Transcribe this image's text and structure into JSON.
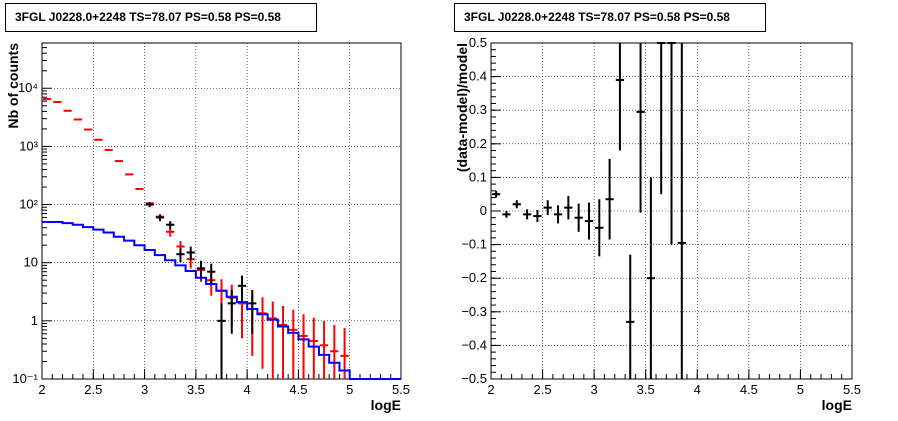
{
  "chart_data": [
    {
      "type": "line",
      "title": "3FGL J0228.0+2248 TS=78.07 PS=0.58 PS=0.58",
      "xlabel": "logE",
      "ylabel": "Nb of counts",
      "xlim": [
        2,
        5.5
      ],
      "ylim": [
        0.1,
        60000
      ],
      "yscale": "log",
      "grid": true,
      "xticks": [
        "2",
        "2.5",
        "3",
        "3.5",
        "4",
        "4.5",
        "5",
        "5.5"
      ],
      "yticks": [
        {
          "value": 0.1,
          "label": "10⁻¹"
        },
        {
          "value": 1,
          "label": "1"
        },
        {
          "value": 10,
          "label": "10"
        },
        {
          "value": 100,
          "label": "10²"
        },
        {
          "value": 1000,
          "label": "10³"
        },
        {
          "value": 10000,
          "label": "10⁴"
        }
      ],
      "series": [
        {
          "color": "#ff0000",
          "style": "error-points",
          "x": [
            2.05,
            2.15,
            2.25,
            2.35,
            2.45,
            2.55,
            2.65,
            2.75,
            2.85,
            2.95,
            3.05,
            3.15,
            3.25,
            3.35,
            3.45,
            3.55,
            3.65,
            3.75,
            3.85,
            3.95,
            4.05,
            4.15,
            4.25,
            4.35,
            4.45,
            4.55,
            4.65,
            4.75,
            4.85,
            4.95
          ],
          "y": [
            6500,
            5800,
            4100,
            2900,
            1950,
            1300,
            870,
            560,
            330,
            185,
            105,
            62,
            34,
            19,
            11.5,
            7.5,
            5,
            3.3,
            2.5,
            2,
            1.6,
            1.35,
            1.1,
            0.85,
            0.7,
            0.55,
            0.45,
            0.38,
            0.3,
            0.25
          ],
          "err": [
            0,
            0,
            0,
            0,
            0,
            0,
            0,
            0,
            0,
            0,
            0,
            0,
            6,
            4.5,
            3.5,
            2.8,
            2.3,
            1.9,
            1.7,
            1.5,
            1.35,
            1.2,
            1.05,
            0.95,
            0.85,
            0.75,
            0.68,
            0.62,
            0.55,
            0.5
          ]
        },
        {
          "color": "#000000",
          "style": "error-points",
          "x": [
            3.05,
            3.15,
            3.25,
            3.35,
            3.45,
            3.55,
            3.65,
            3.75,
            3.85,
            3.95,
            4.05
          ],
          "y": [
            100,
            60,
            45,
            14,
            15,
            8,
            7,
            1,
            2,
            4,
            2
          ],
          "err": [
            10,
            8,
            6.7,
            3.7,
            3.9,
            2.8,
            2.6,
            1,
            1.4,
            2,
            1.4
          ]
        },
        {
          "color": "#0000ff",
          "style": "step",
          "x": [
            2.05,
            2.15,
            2.25,
            2.35,
            2.45,
            2.55,
            2.65,
            2.75,
            2.85,
            2.95,
            3.05,
            3.15,
            3.25,
            3.35,
            3.45,
            3.55,
            3.65,
            3.75,
            3.85,
            3.95,
            4.05,
            4.15,
            4.25,
            4.35,
            4.45,
            4.55,
            4.65,
            4.75,
            4.85,
            4.95,
            5.05,
            5.15,
            5.25,
            5.35,
            5.45
          ],
          "y": [
            50,
            50,
            48,
            45,
            41,
            37,
            33,
            28,
            24,
            20,
            16.5,
            13.5,
            11,
            9,
            7.2,
            5.5,
            4.3,
            3.3,
            2.6,
            2.1,
            1.6,
            1.3,
            1.05,
            0.8,
            0.62,
            0.48,
            0.36,
            0.26,
            0.19,
            0.14,
            0.1,
            0.1,
            0.1,
            0.1,
            0.1
          ]
        }
      ]
    },
    {
      "type": "scatter",
      "title": "3FGL J0228.0+2248 TS=78.07 PS=0.58 PS=0.58",
      "xlabel": "logE",
      "ylabel": "(data-model)/model",
      "xlim": [
        2,
        5.5
      ],
      "ylim": [
        -0.5,
        0.5
      ],
      "grid": true,
      "xticks": [
        "2",
        "2.5",
        "3",
        "3.5",
        "4",
        "4.5",
        "5",
        "5.5"
      ],
      "yticks": [
        "−0.5",
        "−0.4",
        "−0.3",
        "−0.2",
        "−0.1",
        "0",
        "0.1",
        "0.2",
        "0.3",
        "0.4",
        "0.5"
      ],
      "series": [
        {
          "color": "#000000",
          "style": "error-points",
          "x": [
            2.05,
            2.15,
            2.25,
            2.35,
            2.45,
            2.55,
            2.65,
            2.75,
            2.85,
            2.95,
            3.05,
            3.15,
            3.25,
            3.35,
            3.45,
            3.55,
            3.65,
            3.75,
            3.85
          ],
          "y": [
            0.05,
            -0.01,
            0.02,
            -0.01,
            -0.015,
            0.01,
            -0.01,
            0.01,
            -0.02,
            -0.03,
            -0.05,
            0.035,
            0.39,
            -0.33,
            0.295,
            -0.2,
            0.5,
            0.5,
            -0.095
          ],
          "err": [
            0.01,
            0.01,
            0.012,
            0.015,
            0.018,
            0.022,
            0.027,
            0.035,
            0.042,
            0.055,
            0.085,
            0.12,
            0.21,
            0.2,
            0.3,
            0.3,
            0.45,
            0.6,
            0.6
          ]
        }
      ]
    }
  ]
}
